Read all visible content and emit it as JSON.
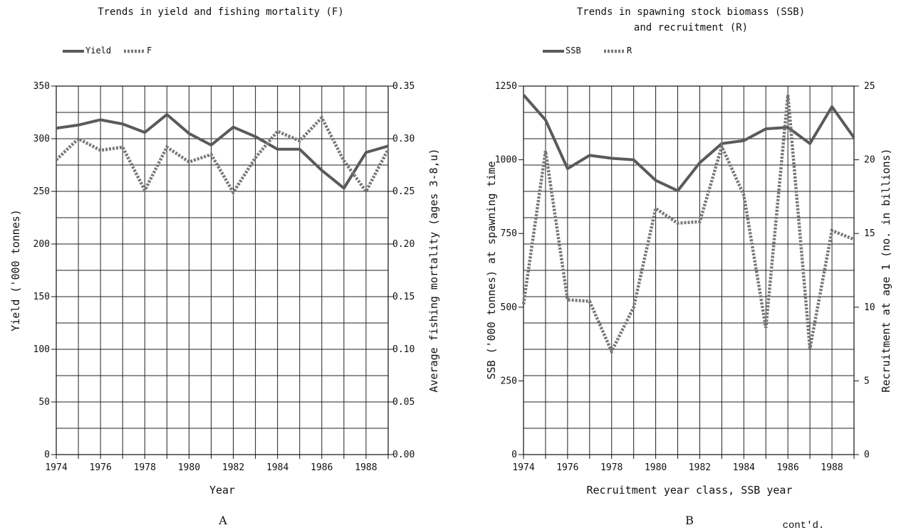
{
  "chart_data": [
    {
      "type": "line",
      "title": "Trends in yield and fishing mortality (F)",
      "panel_label": "A",
      "xlabel": "Year",
      "ylabel_left": "Yield ('000 tonnes)",
      "ylabel_right": "Average fishing mortality (ages 3-8,u)",
      "x": [
        1974,
        1975,
        1976,
        1977,
        1978,
        1979,
        1980,
        1981,
        1982,
        1983,
        1984,
        1985,
        1986,
        1987,
        1988,
        1989
      ],
      "x_tick_labels": [
        "1974",
        "1976",
        "1978",
        "1980",
        "1982",
        "1984",
        "1986",
        "1988"
      ],
      "ylim_left": [
        0,
        350
      ],
      "ylim_right": [
        0,
        0.35
      ],
      "y_left_tick_labels": [
        "0",
        "50",
        "100",
        "150",
        "200",
        "250",
        "300",
        "350"
      ],
      "y_right_tick_labels": [
        "0.00",
        "0.05",
        "0.10",
        "0.15",
        "0.20",
        "0.25",
        "0.30",
        "0.35"
      ],
      "grid": true,
      "legend_position": "top-left",
      "series": [
        {
          "name": "Yield",
          "axis": "left",
          "style": "solid",
          "values": [
            310,
            313,
            318,
            314,
            306,
            323,
            305,
            294,
            311,
            302,
            290,
            290,
            270,
            253,
            287,
            293
          ]
        },
        {
          "name": "F",
          "axis": "right",
          "style": "dashed",
          "values": [
            0.28,
            0.3,
            0.289,
            0.292,
            0.251,
            0.292,
            0.278,
            0.285,
            0.249,
            0.282,
            0.307,
            0.298,
            0.32,
            0.279,
            0.25,
            0.29
          ]
        }
      ]
    },
    {
      "type": "line",
      "title": "Trends in spawning stock biomass (SSB)",
      "title_line2": "and recruitment (R)",
      "panel_label": "B",
      "xlabel": "Recruitment year class, SSB year",
      "ylabel_left": "SSB ('000 tonnes) at spawning time",
      "ylabel_right": "Recruitment at age 1 (no. in billions)",
      "x": [
        1974,
        1975,
        1976,
        1977,
        1978,
        1979,
        1980,
        1981,
        1982,
        1983,
        1984,
        1985,
        1986,
        1987,
        1988,
        1989
      ],
      "x_tick_labels": [
        "1974",
        "1976",
        "1978",
        "1980",
        "1982",
        "1984",
        "1986",
        "1988"
      ],
      "ylim_left": [
        0,
        1250
      ],
      "ylim_right": [
        0,
        25
      ],
      "y_left_tick_labels": [
        "0",
        "250",
        "500",
        "750",
        "1000",
        "1250"
      ],
      "y_right_tick_labels": [
        "0",
        "5",
        "10",
        "15",
        "20",
        "25"
      ],
      "grid": true,
      "legend_position": "top-left",
      "series": [
        {
          "name": "SSB",
          "axis": "left",
          "style": "solid",
          "values": [
            1220,
            1135,
            970,
            1015,
            1005,
            1000,
            930,
            895,
            990,
            1055,
            1065,
            1105,
            1110,
            1055,
            1180,
            1075
          ]
        },
        {
          "name": "R",
          "axis": "right",
          "style": "dashed",
          "values": [
            10.2,
            20.6,
            10.5,
            10.4,
            7.0,
            10.0,
            16.7,
            15.7,
            15.8,
            20.9,
            17.6,
            8.6,
            24.4,
            7.2,
            15.2,
            14.6
          ]
        }
      ]
    }
  ],
  "footer_note": "cont'd.",
  "colors": {
    "line": "#5a5a5a",
    "dash": "#777777",
    "grid": "#222222"
  }
}
